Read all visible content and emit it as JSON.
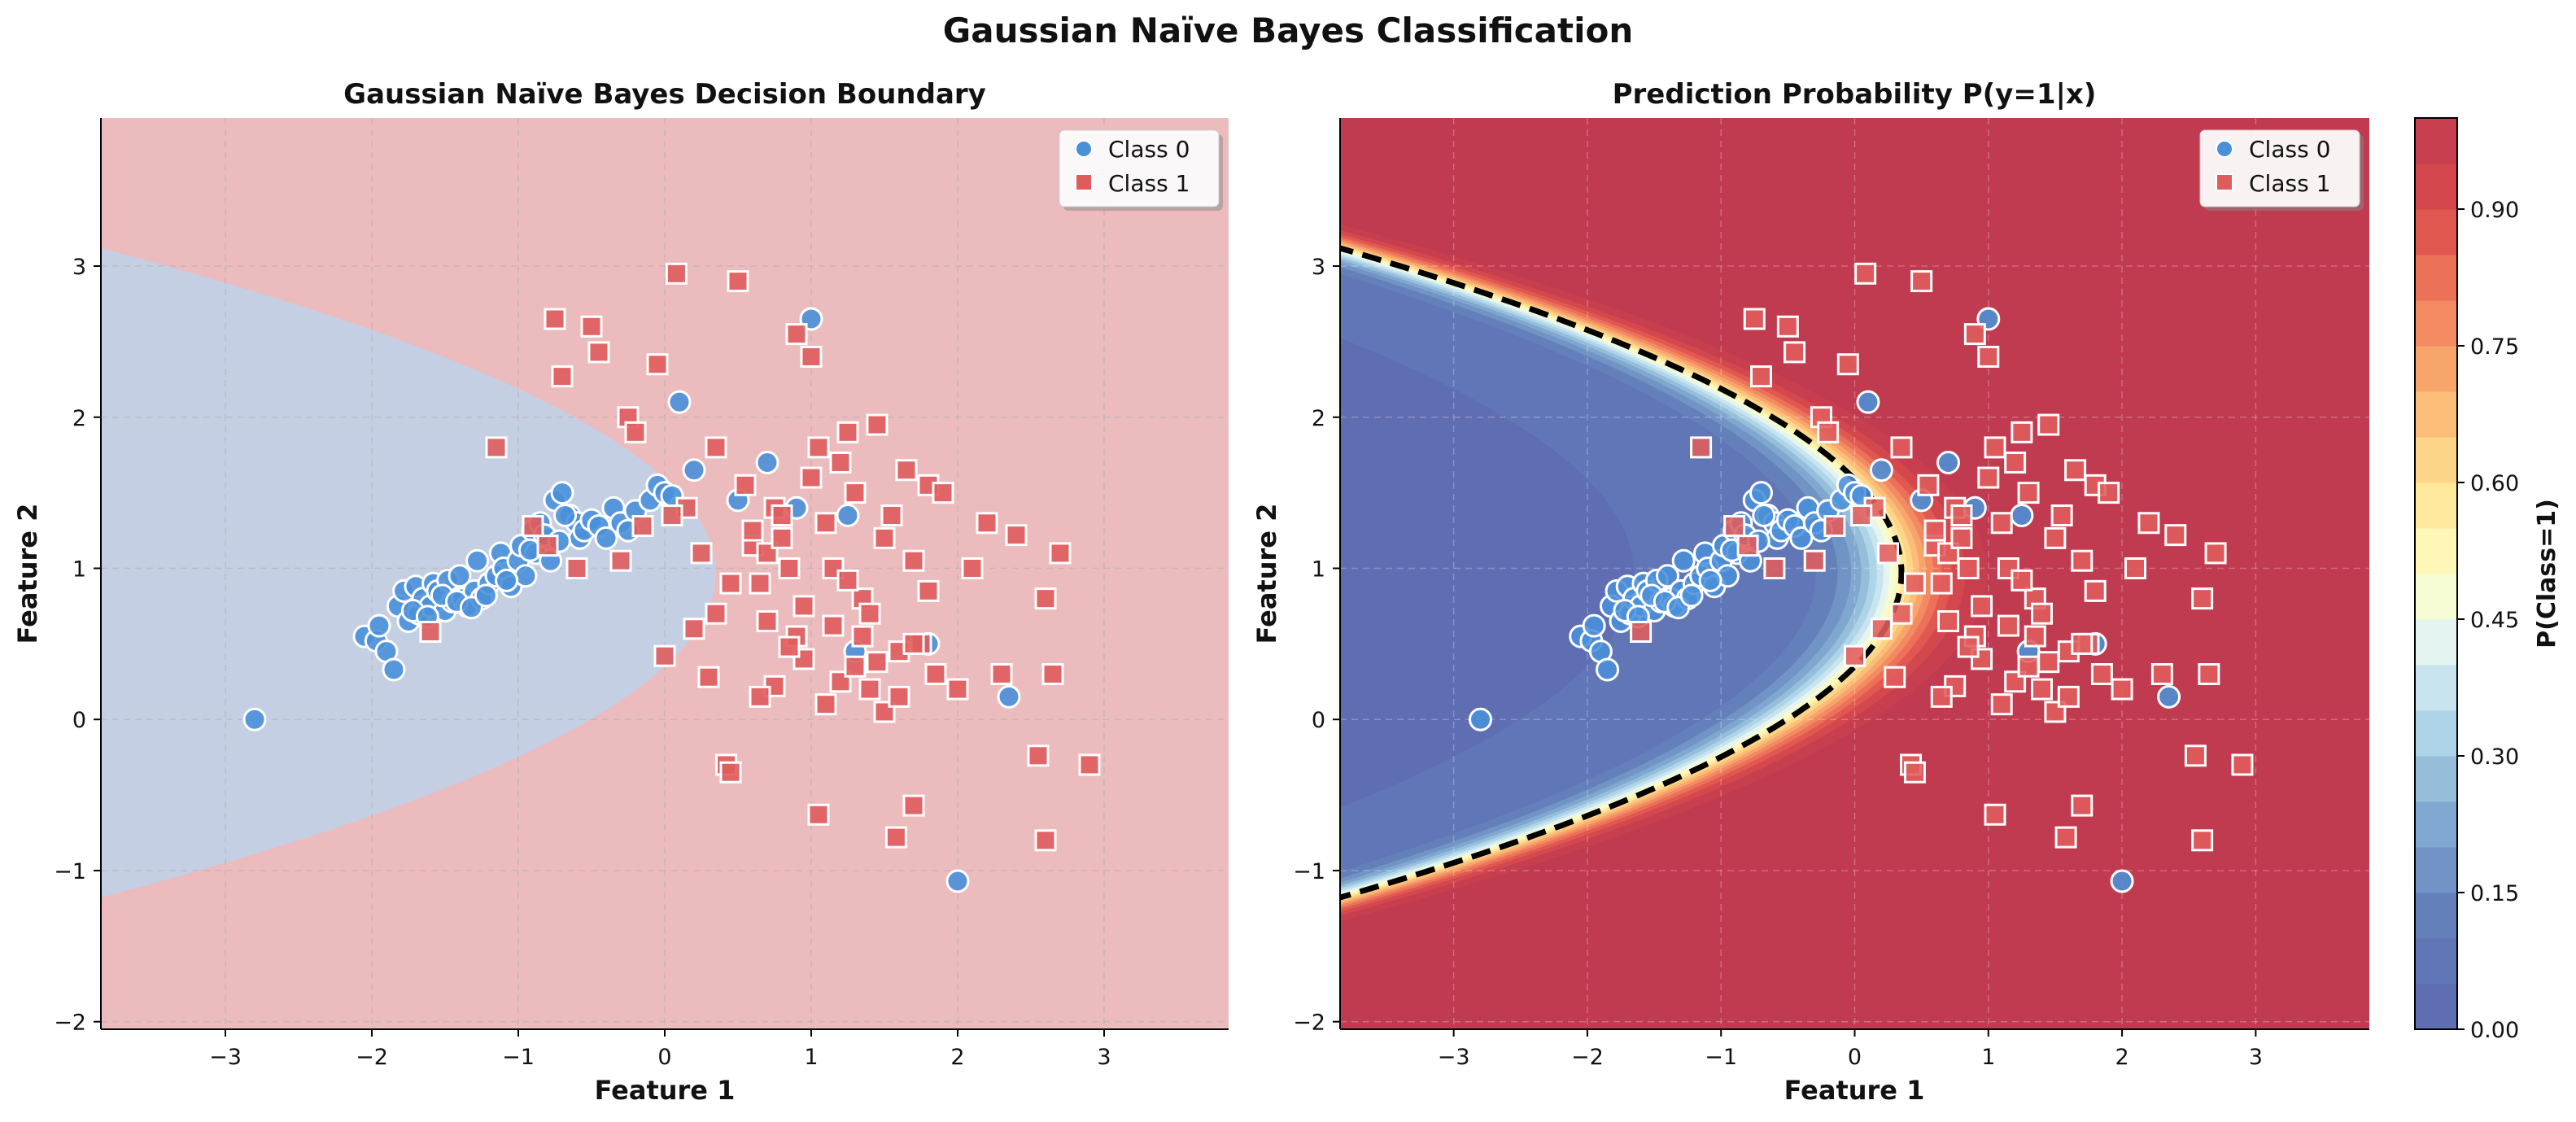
{
  "figure": {
    "suptitle": "Gaussian Naïve Bayes Classification"
  },
  "colors": {
    "class0": "#4a90d9",
    "class1": "#e05c5c",
    "region0": "#c4cfe4",
    "region1": "#ecbbbd",
    "boundary": "#000000"
  },
  "chart_data": [
    {
      "type": "scatter",
      "title": "Gaussian Naïve Bayes Decision Boundary",
      "xlabel": "Feature 1",
      "ylabel": "Feature 2",
      "xlim": [
        -3.85,
        3.85
      ],
      "ylim": [
        -2.05,
        3.98
      ],
      "xticks": [
        -3,
        -2,
        -1,
        0,
        1,
        2,
        3
      ],
      "yticks": [
        -2,
        -1,
        0,
        1,
        2,
        3
      ],
      "grid": true,
      "legend_position": "top-right",
      "background": "decision regions (Class 0 inside parabola-shaped boundary, Class 1 outside)",
      "decision_boundary": {
        "vertex": [
          0.35,
          0.97
        ],
        "curvature": 0.91
      },
      "series": [
        {
          "name": "Class 0",
          "marker": "circle",
          "x": [
            -2.8,
            -2.05,
            -1.97,
            -1.95,
            -1.9,
            -1.85,
            -1.82,
            -1.78,
            -1.75,
            -1.7,
            -1.68,
            -1.65,
            -1.6,
            -1.58,
            -1.55,
            -1.5,
            -1.48,
            -1.45,
            -1.4,
            -1.38,
            -1.35,
            -1.3,
            -1.28,
            -1.25,
            -1.2,
            -1.15,
            -1.12,
            -1.1,
            -1.05,
            -1.0,
            -0.98,
            -0.95,
            -0.9,
            -0.88,
            -0.85,
            -0.8,
            -0.78,
            -0.75,
            -0.7,
            -0.65,
            -0.6,
            -0.58,
            -0.55,
            -0.5,
            -0.45,
            -0.4,
            -0.35,
            -0.3,
            -0.25,
            -0.2,
            -0.1,
            -0.05,
            0.0,
            0.05,
            0.2,
            0.5,
            0.7,
            0.9,
            1.0,
            1.25,
            1.3,
            1.8,
            2.0,
            2.35,
            0.1,
            -1.72,
            -1.62,
            -1.52,
            -1.42,
            -1.32,
            -1.22,
            -1.08,
            -0.92,
            -0.82,
            -0.72,
            -0.68
          ],
          "y": [
            0.0,
            0.55,
            0.52,
            0.62,
            0.45,
            0.33,
            0.75,
            0.85,
            0.65,
            0.88,
            0.7,
            0.8,
            0.75,
            0.9,
            0.85,
            0.72,
            0.92,
            0.78,
            0.95,
            0.8,
            0.75,
            0.85,
            1.05,
            0.8,
            0.9,
            0.95,
            1.1,
            1.0,
            0.88,
            1.05,
            1.15,
            0.95,
            1.25,
            1.1,
            1.3,
            1.2,
            1.05,
            1.45,
            1.5,
            1.35,
            1.3,
            1.2,
            1.25,
            1.32,
            1.28,
            1.2,
            1.4,
            1.3,
            1.25,
            1.38,
            1.45,
            1.55,
            1.5,
            1.48,
            1.65,
            1.45,
            1.7,
            1.4,
            2.65,
            1.35,
            0.45,
            0.5,
            -1.07,
            0.15,
            2.1,
            0.72,
            0.68,
            0.82,
            0.78,
            0.74,
            0.82,
            0.92,
            1.12,
            1.22,
            1.18,
            1.35
          ]
        },
        {
          "name": "Class 1",
          "marker": "square",
          "x": [
            -1.15,
            -1.6,
            -0.75,
            -0.7,
            -0.5,
            -0.45,
            -0.25,
            -0.2,
            -0.05,
            0.08,
            0.5,
            0.42,
            0.45,
            0.15,
            0.2,
            0.3,
            0.35,
            0.55,
            0.6,
            0.65,
            0.7,
            0.75,
            0.8,
            0.85,
            0.9,
            0.95,
            1.0,
            1.05,
            1.1,
            1.15,
            1.2,
            1.25,
            1.3,
            1.35,
            1.4,
            1.45,
            1.5,
            1.55,
            1.6,
            1.65,
            1.7,
            1.75,
            1.8,
            1.85,
            1.9,
            2.0,
            2.1,
            2.2,
            2.3,
            2.4,
            2.6,
            2.65,
            2.7,
            2.9,
            1.05,
            1.58,
            1.7,
            2.55,
            2.6,
            0.0,
            0.25,
            0.35,
            0.45,
            0.6,
            0.7,
            0.8,
            0.9,
            1.0,
            1.1,
            1.2,
            1.3,
            1.4,
            1.5,
            1.6,
            1.7,
            1.8,
            0.95,
            0.85,
            0.75,
            0.65,
            1.15,
            1.25,
            1.35,
            1.45,
            -0.9,
            -0.8,
            -0.6,
            -0.3,
            -0.15,
            0.05
          ],
          "y": [
            1.8,
            0.58,
            2.65,
            2.27,
            2.6,
            2.43,
            2.0,
            1.9,
            2.35,
            2.95,
            2.9,
            -0.3,
            -0.35,
            1.4,
            0.6,
            0.28,
            1.8,
            1.55,
            1.15,
            0.9,
            1.1,
            1.4,
            1.2,
            1.0,
            0.55,
            0.4,
            1.6,
            1.8,
            1.3,
            1.0,
            1.7,
            1.9,
            1.5,
            0.8,
            0.7,
            1.95,
            1.2,
            1.35,
            0.45,
            1.65,
            1.05,
            0.5,
            1.55,
            0.3,
            1.5,
            0.2,
            1.0,
            1.3,
            0.3,
            1.22,
            0.8,
            0.3,
            1.1,
            -0.3,
            -0.63,
            -0.78,
            -0.57,
            -0.24,
            -0.8,
            0.42,
            1.1,
            0.7,
            0.9,
            1.25,
            0.65,
            1.35,
            2.55,
            2.4,
            0.1,
            0.25,
            0.35,
            0.2,
            0.05,
            0.15,
            0.5,
            0.85,
            0.75,
            0.48,
            0.22,
            0.15,
            0.62,
            0.92,
            0.55,
            0.38,
            1.28,
            1.15,
            1.0,
            1.05,
            1.28,
            1.35
          ]
        }
      ]
    },
    {
      "type": "heatmap",
      "title": "Prediction Probability P(y=1|x)",
      "xlabel": "Feature 1",
      "ylabel": "Feature 2",
      "xlim": [
        -3.85,
        3.85
      ],
      "ylim": [
        -2.05,
        3.98
      ],
      "xticks": [
        -3,
        -2,
        -1,
        0,
        1,
        2,
        3
      ],
      "yticks": [
        -2,
        -1,
        0,
        1,
        2,
        3
      ],
      "grid": true,
      "legend_position": "top-right",
      "contour": "P(y=1|x) filled contours with dashed 0.5 decision boundary",
      "colorbar": {
        "label": "P(Class=1)",
        "ticks": [
          "0.00",
          "0.15",
          "0.30",
          "0.45",
          "0.60",
          "0.75",
          "0.90"
        ],
        "tick_values": [
          0.0,
          0.15,
          0.3,
          0.45,
          0.6,
          0.75,
          0.9
        ],
        "range": [
          0,
          1
        ],
        "levels": 20
      },
      "series": "same points as panel 1"
    }
  ]
}
